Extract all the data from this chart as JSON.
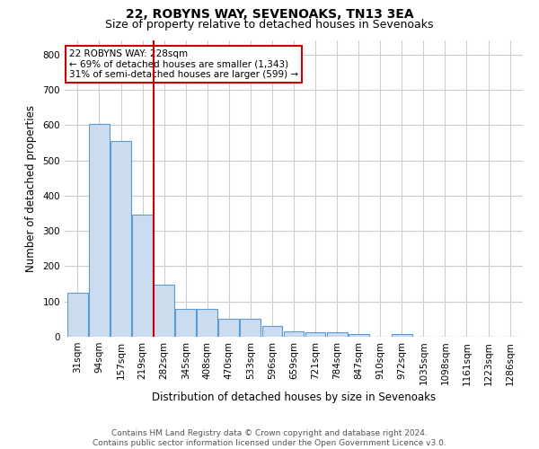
{
  "title1": "22, ROBYNS WAY, SEVENOAKS, TN13 3EA",
  "title2": "Size of property relative to detached houses in Sevenoaks",
  "xlabel": "Distribution of detached houses by size in Sevenoaks",
  "ylabel": "Number of detached properties",
  "footnote": "Contains HM Land Registry data © Crown copyright and database right 2024.\nContains public sector information licensed under the Open Government Licence v3.0.",
  "bar_labels": [
    "31sqm",
    "94sqm",
    "157sqm",
    "219sqm",
    "282sqm",
    "345sqm",
    "408sqm",
    "470sqm",
    "533sqm",
    "596sqm",
    "659sqm",
    "721sqm",
    "784sqm",
    "847sqm",
    "910sqm",
    "972sqm",
    "1035sqm",
    "1098sqm",
    "1161sqm",
    "1223sqm",
    "1286sqm"
  ],
  "bar_values": [
    125,
    603,
    556,
    347,
    147,
    78,
    78,
    51,
    51,
    30,
    15,
    14,
    14,
    7,
    0,
    7,
    0,
    0,
    0,
    0,
    0
  ],
  "bar_color": "#ccdcf0",
  "bar_edge_color": "#5b9bd5",
  "vline_x": 3.5,
  "vline_color": "#cc0000",
  "annotation_text": "22 ROBYNS WAY: 228sqm\n← 69% of detached houses are smaller (1,343)\n31% of semi-detached houses are larger (599) →",
  "annotation_box_color": "#ffffff",
  "annotation_box_edge": "#cc0000",
  "ylim": [
    0,
    840
  ],
  "yticks": [
    0,
    100,
    200,
    300,
    400,
    500,
    600,
    700,
    800
  ],
  "bg_color": "#ffffff",
  "grid_color": "#cccccc",
  "title1_fontsize": 10,
  "title2_fontsize": 9,
  "xlabel_fontsize": 8.5,
  "ylabel_fontsize": 8.5,
  "tick_fontsize": 7.5,
  "footnote_fontsize": 6.5
}
